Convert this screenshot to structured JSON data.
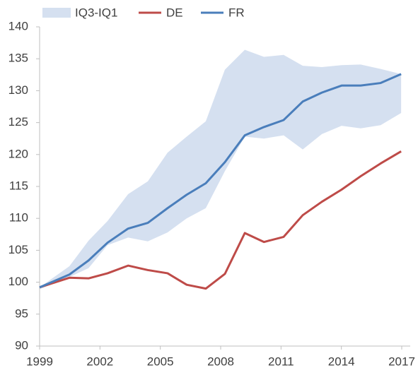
{
  "chart_data": {
    "type": "line",
    "legend": "top",
    "x": [
      1999,
      2000.48,
      2001.43,
      2002.38,
      2003.4,
      2004.38,
      2005.36,
      2006.31,
      2007.26,
      2008.21,
      2009.2,
      2010.15,
      2011.13,
      2012.08,
      2013.03,
      2014.01,
      2014.96,
      2015.95,
      2016.97
    ],
    "band": {
      "name": "IQ3-IQ1",
      "color": "#d5e0f0",
      "upper": [
        99.2,
        102.5,
        106.5,
        109.6,
        113.8,
        115.8,
        120.3,
        122.8,
        125.2,
        133.3,
        136.4,
        135.3,
        135.6,
        133.9,
        133.7,
        134.0,
        134.1,
        133.4,
        132.6
      ],
      "lower": [
        98.9,
        100.8,
        102.2,
        105.8,
        107.0,
        106.4,
        107.8,
        110.0,
        111.6,
        117.4,
        122.8,
        122.5,
        123.0,
        120.8,
        123.2,
        124.5,
        124.1,
        124.6,
        126.5
      ]
    },
    "series": [
      {
        "name": "DE",
        "color": "#be4b48",
        "values": [
          99.2,
          100.7,
          100.6,
          101.4,
          102.6,
          101.9,
          101.4,
          99.6,
          99.0,
          101.3,
          107.7,
          106.3,
          107.1,
          110.5,
          112.6,
          114.5,
          116.6,
          118.6,
          120.5
        ]
      },
      {
        "name": "FR",
        "color": "#4a7ebb",
        "values": [
          99.2,
          101.2,
          103.4,
          106.2,
          108.4,
          109.3,
          111.6,
          113.7,
          115.5,
          118.8,
          123.0,
          124.3,
          125.4,
          128.3,
          129.7,
          130.8,
          130.8,
          131.2,
          132.6
        ]
      }
    ],
    "xlim": [
      1999,
      2017
    ],
    "xticks": [
      1999,
      2002,
      2005,
      2008,
      2011,
      2014,
      2017
    ],
    "ylim": [
      90,
      140
    ],
    "yticks": [
      90,
      95,
      100,
      105,
      110,
      115,
      120,
      125,
      130,
      135,
      140
    ]
  }
}
